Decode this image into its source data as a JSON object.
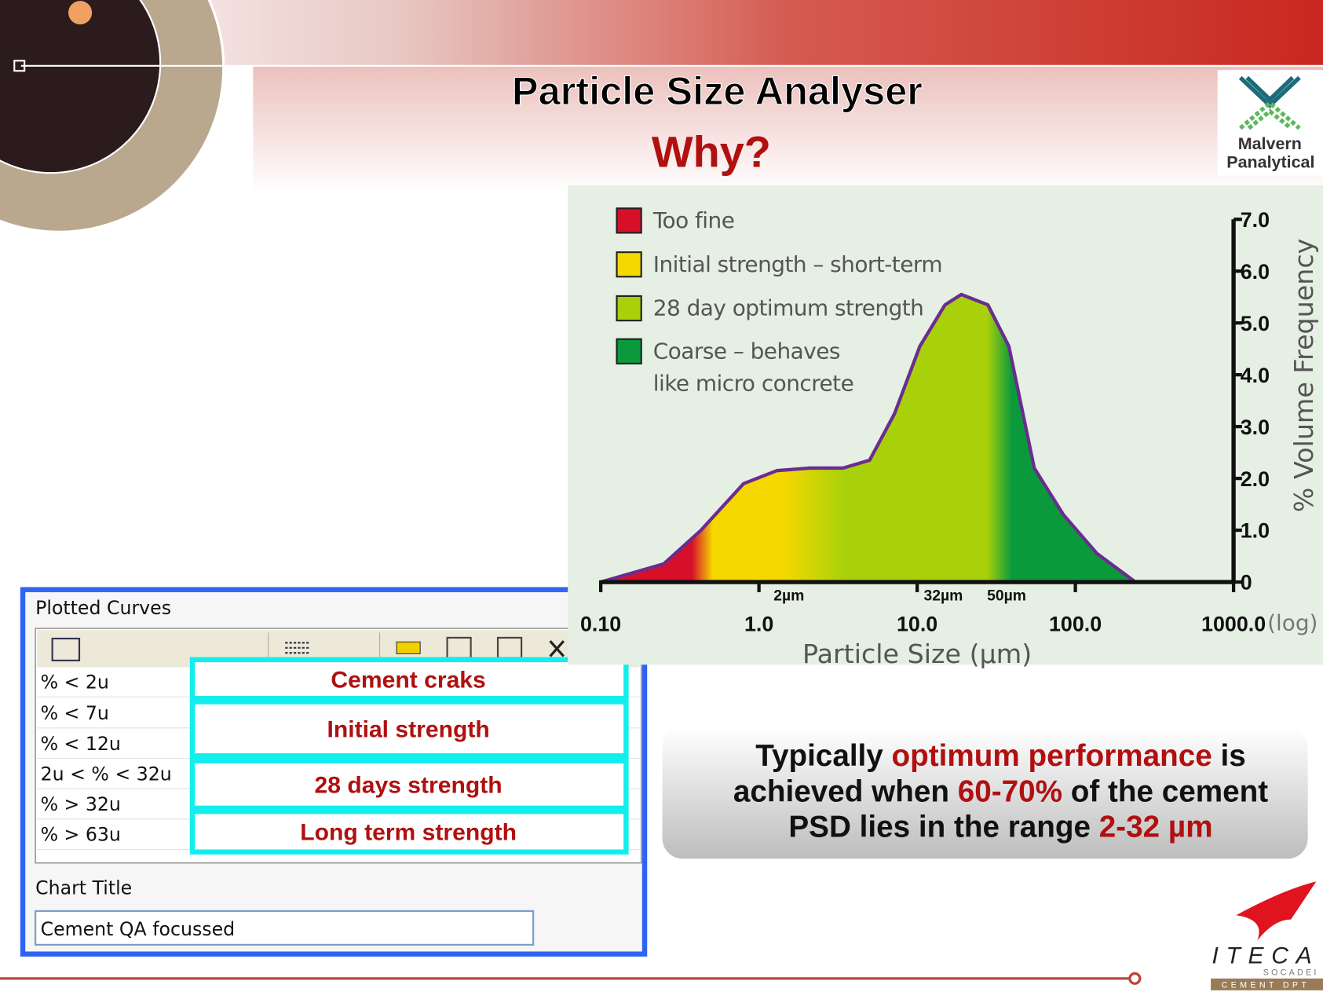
{
  "title": "Particle Size Analyser",
  "subtitle": "Why?",
  "logo_malvern": [
    "Malvern",
    "Panalytical"
  ],
  "logo_iteca": [
    "ITECA",
    "SOCADEI",
    "CEMENT DPT"
  ],
  "chart_data": {
    "type": "area",
    "xlabel": "Particle Size (µm)",
    "ylabel": "% Volume Frequency",
    "xscale": "log",
    "xscale_label": "(log)",
    "x": [
      0.1,
      0.25,
      0.43,
      0.8,
      1.3,
      2.1,
      3.4,
      5,
      7.2,
      10.4,
      15,
      19,
      28,
      38,
      55,
      84,
      137,
      240
    ],
    "series": [
      {
        "color": "#6a2d8f",
        "values": [
          0,
          0.35,
          1.0,
          1.9,
          2.15,
          2.2,
          2.2,
          2.35,
          3.25,
          4.55,
          5.35,
          5.55,
          5.35,
          4.55,
          2.2,
          1.3,
          0.55,
          0
        ]
      }
    ],
    "legend": [
      {
        "name": "Too fine",
        "color": "#d7102a"
      },
      {
        "name": "Initial strength – short-term",
        "color": "#f5d800"
      },
      {
        "name": "28 day optimum strength",
        "color": "#a9d10b"
      },
      {
        "name": "Coarse – behaves\nlike micro concrete",
        "color": "#0a9a3c"
      }
    ],
    "annotations": [
      "2µm",
      "32µm",
      "50µm"
    ],
    "xlim": [
      0.1,
      1000
    ],
    "xticks": [
      {
        "value": 0.1,
        "label": "0.10"
      },
      {
        "value": 1,
        "label": "1.0"
      },
      {
        "value": 10,
        "label": "10.0"
      },
      {
        "value": 100,
        "label": "100.0"
      },
      {
        "value": 1000,
        "label": "1000.0"
      }
    ],
    "ylim": [
      0,
      7
    ],
    "yticks": [
      0,
      {
        "value": 1,
        "label": "1.0"
      },
      {
        "value": 2,
        "label": "2.0"
      },
      {
        "value": 3,
        "label": "3.0"
      },
      {
        "value": 4,
        "label": "4.0"
      },
      {
        "value": 5,
        "label": "5.0"
      },
      {
        "value": 6,
        "label": "6.0"
      },
      {
        "value": 7,
        "label": "7.0"
      }
    ]
  },
  "panel": {
    "title": "Plotted Curves",
    "rows": [
      "% < 2u",
      "% < 7u",
      "% < 12u",
      "2u < % < 32u",
      "% > 32u",
      "% > 63u"
    ],
    "boxes": [
      "Cement craks",
      "Initial strength",
      "28 days strength",
      "Long term strength"
    ],
    "field_label": "Chart Title",
    "field_value": "Cement QA focussed"
  },
  "callout": {
    "lines": [
      [
        "Typically ",
        "optimum performance",
        " is"
      ],
      [
        "achieved when ",
        "60-70%",
        " of the cement"
      ],
      [
        "PSD lies in the range ",
        "2-32 µm"
      ]
    ]
  }
}
